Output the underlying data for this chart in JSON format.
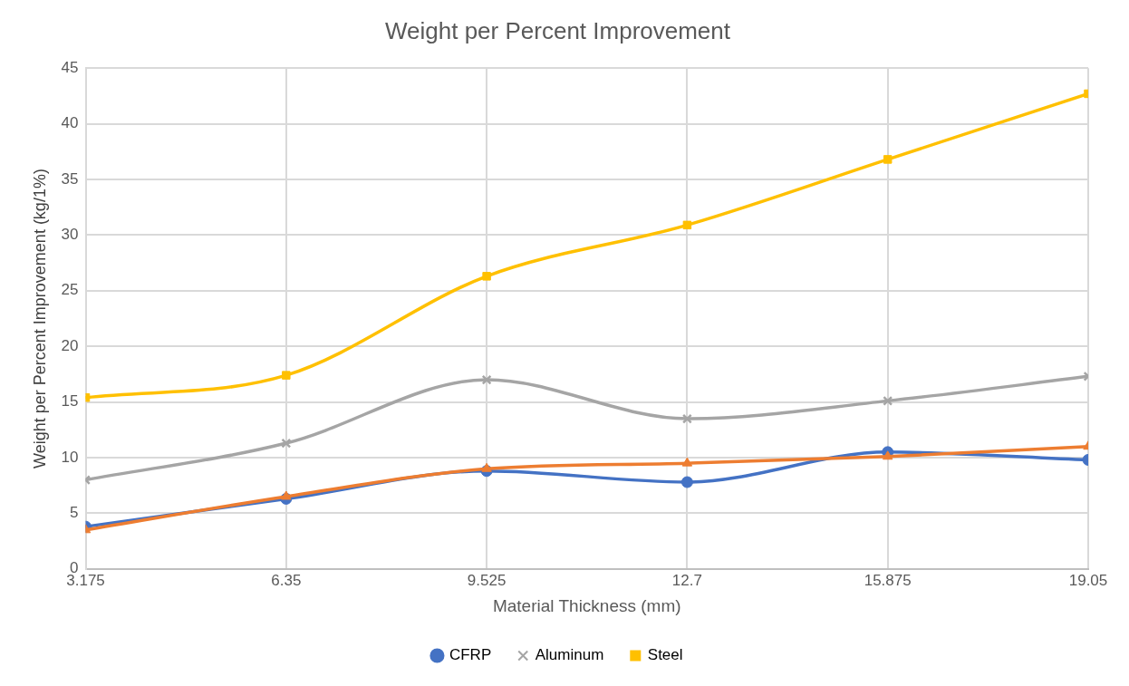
{
  "chart_data": {
    "type": "line",
    "title": "Weight per Percent Improvement",
    "xlabel": "Material Thickness (mm)",
    "ylabel": "Weight per Percent Improvement (kg/1%)",
    "x": [
      3.175,
      6.35,
      9.525,
      12.7,
      15.875,
      19.05
    ],
    "xlim": [
      3.175,
      19.05
    ],
    "xticks": [
      3.175,
      6.35,
      9.525,
      12.7,
      15.875,
      19.05
    ],
    "ylim": [
      0,
      45
    ],
    "yticks": [
      0,
      5,
      10,
      15,
      20,
      25,
      30,
      35,
      40,
      45
    ],
    "grid": true,
    "legend": "bottom",
    "series": [
      {
        "name": "CFRP",
        "color": "#4472c4",
        "marker": "circle",
        "values": [
          3.8,
          6.3,
          8.8,
          7.8,
          10.5,
          9.8
        ]
      },
      {
        "color": "#ed7d31",
        "marker": "triangle",
        "values": [
          3.5,
          6.5,
          9.0,
          9.5,
          10.1,
          11.0
        ]
      },
      {
        "name": "Aluminum",
        "color": "#a5a5a5",
        "marker": "cross",
        "values": [
          8.0,
          11.3,
          17.0,
          13.5,
          15.1,
          17.3
        ]
      },
      {
        "name": "Steel",
        "color": "#ffc000",
        "marker": "square",
        "values": [
          15.4,
          17.4,
          26.3,
          30.9,
          36.8,
          42.7
        ]
      }
    ]
  }
}
